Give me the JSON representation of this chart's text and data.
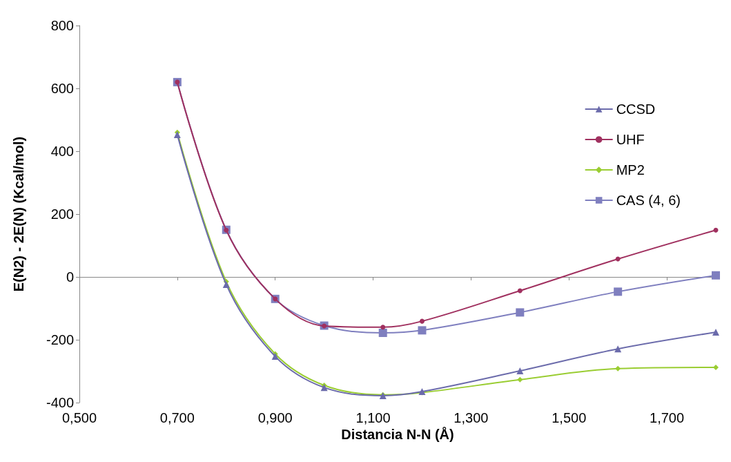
{
  "chart_data": {
    "type": "line",
    "xlabel": "Distancia N-N (Å)",
    "ylabel": "E(N2) - 2E(N) (Kcal/mol)",
    "x": [
      0.7,
      0.8,
      0.9,
      1.0,
      1.12,
      1.2,
      1.4,
      1.6,
      1.8
    ],
    "xlim": [
      0.5,
      1.8
    ],
    "xticks": [
      {
        "value": 0.5,
        "label": "0,500"
      },
      {
        "value": 0.7,
        "label": "0,700"
      },
      {
        "value": 0.9,
        "label": "0,900"
      },
      {
        "value": 1.1,
        "label": "1,100"
      },
      {
        "value": 1.3,
        "label": "1,300"
      },
      {
        "value": 1.5,
        "label": "1,500"
      },
      {
        "value": 1.7,
        "label": "1,700"
      }
    ],
    "ylim": [
      -400,
      800
    ],
    "yticks": [
      -400,
      -200,
      0,
      200,
      400,
      600,
      800
    ],
    "legend": "right",
    "series": [
      {
        "name": "CCSD",
        "color": "#6b6bab",
        "marker": "triangle",
        "values": [
          453,
          -24,
          -253,
          -352,
          -378,
          -365,
          -299,
          -229,
          -176
        ]
      },
      {
        "name": "UHF",
        "color": "#a0305f",
        "marker": "circle",
        "values": [
          620,
          149,
          -70,
          -156,
          -160,
          -141,
          -44,
          57,
          149
        ]
      },
      {
        "name": "MP2",
        "color": "#9acd32",
        "marker": "diamond",
        "values": [
          460,
          -15,
          -245,
          -345,
          -375,
          -368,
          -327,
          -292,
          -288
        ]
      },
      {
        "name": "CAS (4, 6)",
        "color": "#7f7fbf",
        "marker": "square",
        "values": [
          620,
          150,
          -70,
          -155,
          -178,
          -170,
          -113,
          -47,
          5
        ]
      }
    ]
  }
}
